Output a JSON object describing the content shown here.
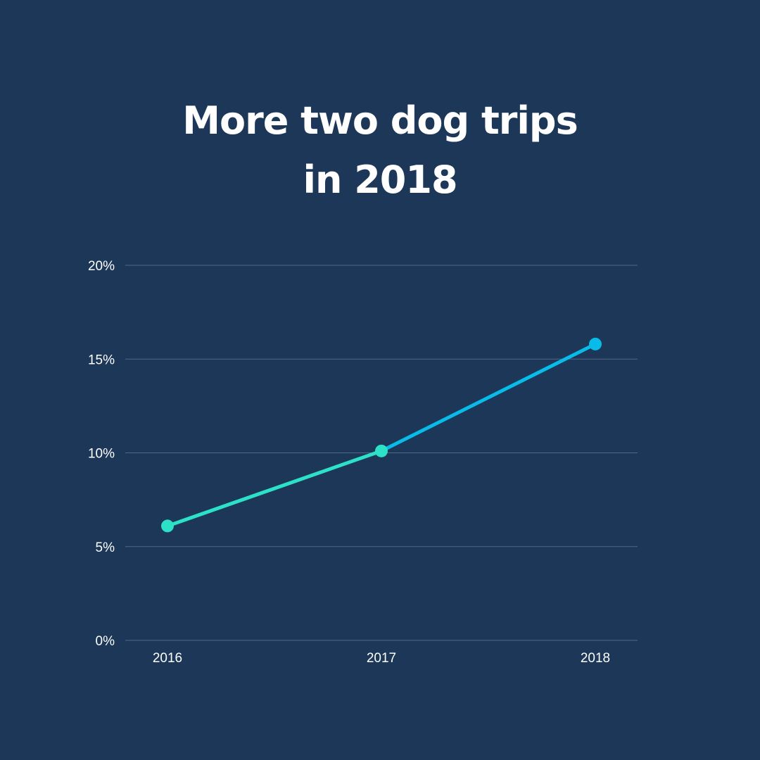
{
  "chart_data": {
    "type": "line",
    "title": "More two dog trips in 2018",
    "xlabel": "",
    "ylabel": "",
    "categories": [
      "2016",
      "2017",
      "2018"
    ],
    "series": [
      {
        "values": [
          6.1,
          10.1,
          15.8
        ]
      }
    ],
    "ylim": [
      0,
      20
    ],
    "y_ticks": [
      0,
      5,
      10,
      15,
      20
    ],
    "y_tick_labels": [
      "0%",
      "5%",
      "10%",
      "15%",
      "20%"
    ],
    "grid": true,
    "legend": "none",
    "colors": {
      "background": "#1c3758",
      "gridline": "#4f6985",
      "segment_1": "#2de0c8",
      "segment_2": "#08bbe8",
      "marker_2016": "#2de0c8",
      "marker_2017": "#2de0c8",
      "marker_2018": "#08bbe8",
      "text": "#ffffff"
    }
  }
}
